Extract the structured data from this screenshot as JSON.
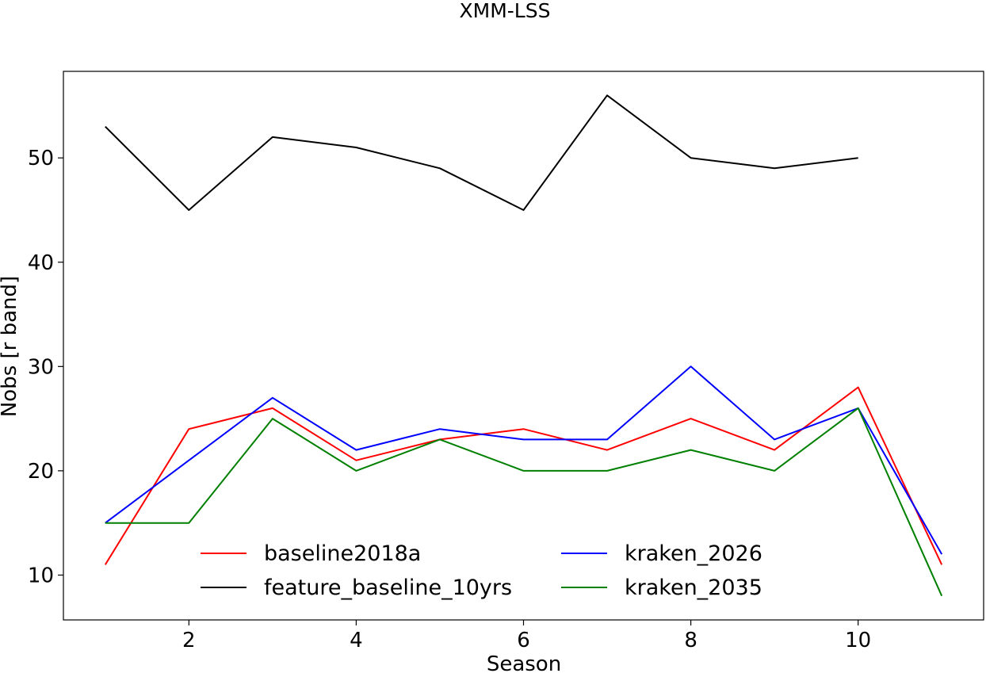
{
  "chart_data": {
    "type": "line",
    "title": "XMM-LSS",
    "xlabel": "Season",
    "ylabel": "Nobs [r band]",
    "xlim": [
      0.5,
      11.5
    ],
    "ylim": [
      5.7,
      58.3
    ],
    "xticks": [
      2,
      4,
      6,
      8,
      10
    ],
    "yticks": [
      10,
      20,
      30,
      40,
      50
    ],
    "grid": false,
    "legend_position": "lower-center",
    "legend_columns": 2,
    "series": [
      {
        "name": "baseline2018a",
        "color": "#ff0000",
        "x": [
          1,
          2,
          3,
          4,
          5,
          6,
          7,
          8,
          9,
          10,
          11
        ],
        "y": [
          11,
          24,
          26,
          21,
          23,
          24,
          22,
          25,
          22,
          28,
          11
        ]
      },
      {
        "name": "feature_baseline_10yrs",
        "color": "#000000",
        "x": [
          1,
          2,
          3,
          4,
          5,
          6,
          7,
          8,
          9,
          10
        ],
        "y": [
          53,
          45,
          52,
          51,
          49,
          45,
          56,
          50,
          49,
          50
        ]
      },
      {
        "name": "kraken_2026",
        "color": "#0000ff",
        "x": [
          1,
          2,
          3,
          4,
          5,
          6,
          7,
          8,
          9,
          10,
          11
        ],
        "y": [
          15,
          21,
          27,
          22,
          24,
          23,
          23,
          30,
          23,
          26,
          12
        ]
      },
      {
        "name": "kraken_2035",
        "color": "#008000",
        "x": [
          1,
          2,
          3,
          4,
          5,
          6,
          7,
          8,
          9,
          10,
          11
        ],
        "y": [
          15,
          15,
          25,
          20,
          23,
          20,
          20,
          22,
          20,
          26,
          8
        ]
      }
    ]
  }
}
